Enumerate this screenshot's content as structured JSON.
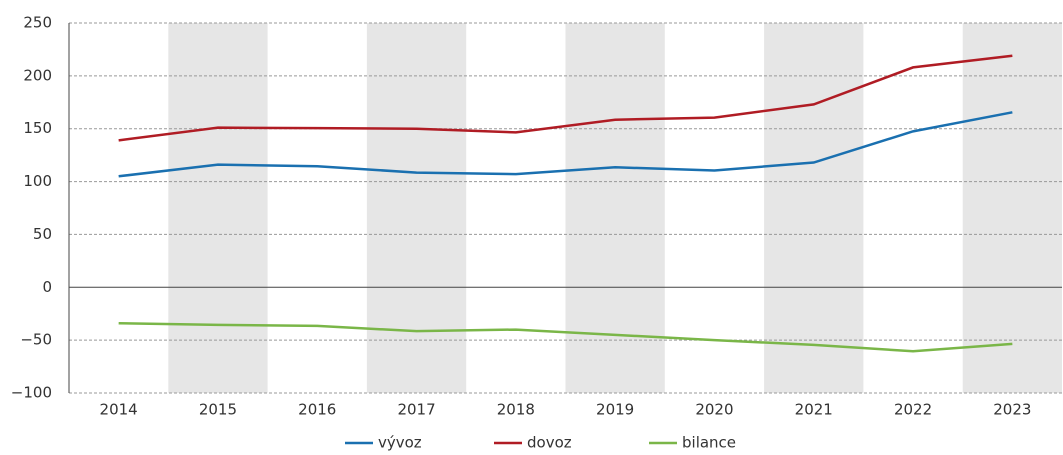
{
  "chart_data": {
    "type": "line",
    "categories": [
      "2014",
      "2015",
      "2016",
      "2017",
      "2018",
      "2019",
      "2020",
      "2021",
      "2022",
      "2023"
    ],
    "series": [
      {
        "name": "vývoz",
        "color": "#1a70b0",
        "values": [
          105,
          116,
          114.5,
          108.5,
          107,
          113.5,
          110.5,
          118,
          147.5,
          165.5
        ]
      },
      {
        "name": "dovoz",
        "color": "#b01c24",
        "values": [
          139,
          151,
          150.5,
          150,
          146.5,
          158.5,
          160.5,
          173,
          208,
          219
        ]
      },
      {
        "name": "bilance",
        "color": "#7ab648",
        "values": [
          -34,
          -35.5,
          -36.5,
          -41.5,
          -40,
          -45,
          -50,
          -54.5,
          -60.5,
          -53.5
        ]
      }
    ],
    "ylim": [
      -100,
      250
    ],
    "yticks": [
      {
        "value": -100,
        "label": "−100"
      },
      {
        "value": -50,
        "label": "−50"
      },
      0,
      50,
      100,
      150,
      200,
      250
    ],
    "grid": true,
    "alternate_band_shading": true,
    "legend": "bottom"
  }
}
